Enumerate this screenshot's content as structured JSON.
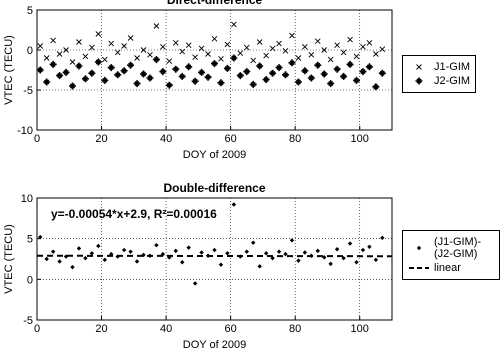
{
  "chart_data": [
    {
      "type": "scatter",
      "title": "Direct-difference",
      "x_label": "DOY of 2009",
      "y_label": "VTEC (TECU)",
      "xlim": [
        0,
        110
      ],
      "xticks": [
        0,
        20,
        40,
        60,
        80,
        100
      ],
      "ylim": [
        -10,
        5
      ],
      "yticks": [
        -10,
        -5,
        0,
        5
      ],
      "grid": true,
      "series": [
        {
          "name": "J1-GIM",
          "color": "#000000",
          "marker": "x",
          "x": [
            1,
            3,
            5,
            7,
            9,
            11,
            13,
            15,
            17,
            19,
            21,
            23,
            25,
            27,
            29,
            31,
            33,
            35,
            37,
            39,
            41,
            43,
            45,
            47,
            49,
            51,
            53,
            55,
            57,
            59,
            61,
            63,
            65,
            67,
            69,
            71,
            73,
            75,
            77,
            79,
            81,
            83,
            85,
            87,
            89,
            91,
            93,
            95,
            97,
            99,
            101,
            103,
            105,
            107
          ],
          "values": [
            0.5,
            -1,
            1.2,
            -0.5,
            0,
            -1.5,
            1,
            -0.8,
            0.3,
            2,
            -1.2,
            0.8,
            -0.3,
            0.5,
            1.5,
            -1,
            0,
            -0.6,
            3,
            0.4,
            -1.4,
            0.9,
            -0.2,
            0.6,
            -0.9,
            0.2,
            -0.5,
            1.4,
            -1.1,
            0.7,
            3.2,
            -0.4,
            0.3,
            -1.3,
            1,
            -0.7,
            0.2,
            0.8,
            -0.1,
            1.8,
            -1,
            0.4,
            -0.6,
            1.1,
            0,
            -1.2,
            0.6,
            -0.3,
            1.3,
            -0.8,
            0.4,
            0.9,
            -0.5,
            0.1
          ]
        },
        {
          "name": "J2-GIM",
          "color": "#000000",
          "marker": "star",
          "x": [
            1,
            3,
            5,
            7,
            9,
            11,
            13,
            15,
            17,
            19,
            21,
            23,
            25,
            27,
            29,
            31,
            33,
            35,
            37,
            39,
            41,
            43,
            45,
            47,
            49,
            51,
            53,
            55,
            57,
            59,
            61,
            63,
            65,
            67,
            69,
            71,
            73,
            75,
            77,
            79,
            81,
            83,
            85,
            87,
            89,
            91,
            93,
            95,
            97,
            99,
            101,
            103,
            105,
            107
          ],
          "values": [
            -2.5,
            -4,
            -1.8,
            -3.2,
            -2.8,
            -4.5,
            -2,
            -3.6,
            -2.9,
            -1.5,
            -3.8,
            -2.2,
            -3.1,
            -2.6,
            -1.9,
            -4.2,
            -3,
            -3.5,
            -1.2,
            -2.7,
            -4.4,
            -2.4,
            -3.3,
            -2.1,
            -3.9,
            -2.8,
            -3.4,
            -1.7,
            -4.1,
            -2.3,
            -1,
            -3.2,
            -2.7,
            -4.3,
            -2,
            -3.7,
            -2.9,
            -2.2,
            -3.1,
            -1.6,
            -4,
            -2.6,
            -3.5,
            -1.9,
            -3,
            -4.2,
            -2.4,
            -3.3,
            -1.8,
            -3.8,
            -2.7,
            -2.1,
            -4.6,
            -2.9
          ]
        }
      ]
    },
    {
      "type": "scatter",
      "title": "Double-difference",
      "x_label": "DOY of 2009",
      "y_label": "VTEC (TECU)",
      "annotation": "y=-0.00054*x+2.9, R²=0.00016",
      "xlim": [
        0,
        110
      ],
      "xticks": [
        0,
        20,
        40,
        60,
        80,
        100
      ],
      "ylim": [
        -5,
        10
      ],
      "yticks": [
        -5,
        0,
        5,
        10
      ],
      "grid": true,
      "series": [
        {
          "name": "(J1-GIM)-(J2-GIM)",
          "color": "#000000",
          "marker": "diamond",
          "x": [
            1,
            3,
            5,
            7,
            9,
            11,
            13,
            15,
            17,
            19,
            21,
            23,
            25,
            27,
            29,
            31,
            33,
            35,
            37,
            39,
            41,
            43,
            45,
            47,
            49,
            51,
            53,
            55,
            57,
            59,
            61,
            63,
            65,
            67,
            69,
            71,
            73,
            75,
            77,
            79,
            81,
            83,
            85,
            87,
            89,
            91,
            93,
            95,
            97,
            99,
            101,
            103,
            105,
            107
          ],
          "values": [
            5.2,
            2.5,
            3.4,
            2.2,
            2.8,
            1.5,
            3.8,
            2.6,
            3.2,
            4.1,
            2.4,
            3.1,
            2.8,
            3.6,
            3.4,
            2.2,
            3,
            2.9,
            4.2,
            3.1,
            2.7,
            3.5,
            2.1,
            3.9,
            -0.5,
            3.3,
            2.9,
            3.6,
            1.8,
            3.2,
            9.2,
            2.8,
            3.4,
            4.5,
            1.6,
            3.2,
            2.6,
            3.4,
            3.1,
            4.8,
            2.3,
            3.3,
            2.9,
            3.5,
            2.7,
            1.9,
            3.7,
            2.6,
            4.4,
            2.1,
            3.6,
            4,
            2.4,
            5.1
          ]
        },
        {
          "name": "linear",
          "color": "#000000",
          "marker": "dashed-line",
          "x": [
            0,
            110
          ],
          "values": [
            2.9,
            2.8406
          ]
        }
      ]
    }
  ]
}
